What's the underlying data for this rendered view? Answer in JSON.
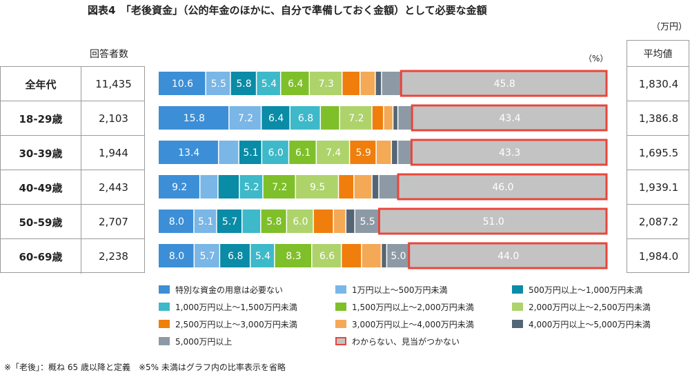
{
  "title": "図表4　「老後資金」（公的年金のほかに、自分で準備しておく金額）として必要な金額",
  "unit_label": "（万円）",
  "respondents_header": "回答者数",
  "percent_unit": "（%）",
  "average_header": "平均値",
  "footnote": "※「老後」：概ね 65 歳以降と定義　※5% 未満はグラフ内の比率表示を省略",
  "chart_data": {
    "type": "bar",
    "orientation": "horizontal",
    "stacked": true,
    "normalized_to": 100,
    "label_threshold_percent": 5,
    "categories": [
      "全年代",
      "18-29歳",
      "30-39歳",
      "40-49歳",
      "50-59歳",
      "60-69歳"
    ],
    "respondents": [
      "11,435",
      "2,103",
      "1,944",
      "2,443",
      "2,707",
      "2,238"
    ],
    "averages": [
      "1,830.4",
      "1,386.8",
      "1,695.5",
      "1,939.1",
      "2,087.2",
      "1,984.0"
    ],
    "highlighted_series": "わからない、見当がつかない",
    "series": [
      {
        "name": "特別な資金の用意は必要ない",
        "color": "#3c8fd6",
        "values": [
          10.6,
          15.8,
          13.4,
          9.2,
          8.0,
          8.0
        ]
      },
      {
        "name": "1万円以上～500万円未満",
        "color": "#7ab6e6",
        "values": [
          5.5,
          7.2,
          4.5,
          4.0,
          5.1,
          5.7
        ]
      },
      {
        "name": "500万円以上～1,000万円未満",
        "color": "#0a8ba6",
        "values": [
          5.8,
          6.4,
          5.1,
          4.7,
          5.7,
          6.8
        ]
      },
      {
        "name": "1,000万円以上～1,500万円未満",
        "color": "#3db9c9",
        "values": [
          5.4,
          6.8,
          6.0,
          5.2,
          4.2,
          5.4
        ]
      },
      {
        "name": "1,500万円以上～2,000万円未満",
        "color": "#7fbf2a",
        "values": [
          6.4,
          4.3,
          6.1,
          7.2,
          5.8,
          8.3
        ]
      },
      {
        "name": "2,000万円以上～2,500万円未満",
        "color": "#aed36b",
        "values": [
          7.3,
          7.2,
          7.4,
          9.5,
          6.0,
          6.6
        ]
      },
      {
        "name": "2,500万円以上～3,000万円未満",
        "color": "#ef7e0d",
        "values": [
          4.0,
          2.6,
          5.9,
          3.4,
          4.5,
          4.5
        ]
      },
      {
        "name": "3,000万円以上～4,000万円未満",
        "color": "#f4a957",
        "values": [
          3.4,
          2.1,
          3.4,
          4.0,
          2.8,
          4.4
        ]
      },
      {
        "name": "4,000万円以上～5,000万円未満",
        "color": "#546676",
        "values": [
          1.4,
          1.1,
          1.4,
          1.5,
          2.0,
          1.2
        ]
      },
      {
        "name": "5,000万円以上",
        "color": "#8d9aa5",
        "values": [
          4.4,
          3.2,
          3.1,
          4.3,
          5.5,
          5.0
        ]
      },
      {
        "name": "わからない、見当がつかない",
        "color": "#c3c3c3",
        "values": [
          45.8,
          43.4,
          43.3,
          46.0,
          51.0,
          44.0
        ]
      }
    ]
  }
}
